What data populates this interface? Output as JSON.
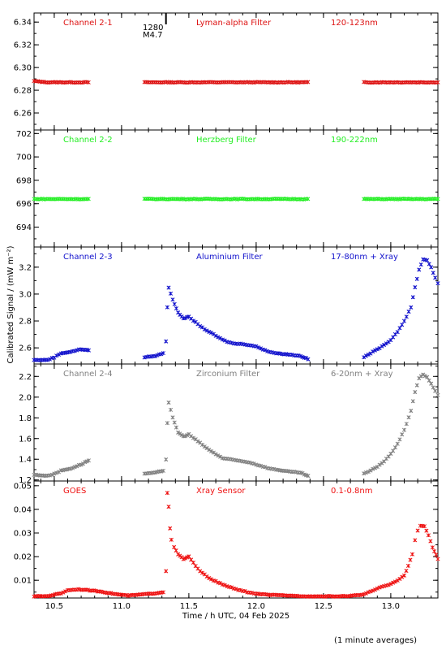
{
  "figure": {
    "xlabel": "Time / h UTC, 04 Feb 2025",
    "ylabel": "Calibrated Signal / (mW m⁻²)",
    "footnote": "(1 minute averages)",
    "flare_marker": {
      "x": 11.33,
      "time_label": "1280",
      "class_label": "M4.7"
    }
  },
  "chart_data": [
    {
      "type": "scatter",
      "channel": "Channel 2-1",
      "filter": "Lyman-alpha Filter",
      "band": "120-123nm",
      "color": "#dd1111",
      "xlim": [
        10.35,
        13.35
      ],
      "ylim": [
        6.245,
        6.348
      ],
      "yticks": [
        6.26,
        6.28,
        6.3,
        6.32,
        6.34
      ],
      "ytick_labels": [
        "6.26",
        "6.28",
        "6.30",
        "6.32",
        "6.34"
      ],
      "gaps": [
        [
          10.77,
          11.17
        ],
        [
          12.4,
          12.8
        ]
      ],
      "points": [
        [
          10.35,
          6.288
        ],
        [
          10.45,
          6.287
        ],
        [
          10.55,
          6.287
        ],
        [
          10.65,
          6.287
        ],
        [
          10.77,
          6.287
        ],
        [
          11.17,
          6.287
        ],
        [
          11.5,
          6.287
        ],
        [
          12.0,
          6.287
        ],
        [
          12.4,
          6.287
        ],
        [
          12.8,
          6.287
        ],
        [
          13.1,
          6.287
        ],
        [
          13.35,
          6.287
        ]
      ]
    },
    {
      "type": "scatter",
      "channel": "Channel 2-2",
      "filter": "Herzberg Filter",
      "band": "190-222nm",
      "color": "#22ee22",
      "xlim": [
        10.35,
        13.35
      ],
      "ylim": [
        692.3,
        702.3
      ],
      "yticks": [
        694,
        696,
        698,
        700,
        702
      ],
      "ytick_labels": [
        "694",
        "696",
        "698",
        "700",
        "702"
      ],
      "gaps": [
        [
          10.77,
          11.17
        ],
        [
          12.4,
          12.8
        ]
      ],
      "points": [
        [
          10.35,
          696.4
        ],
        [
          10.77,
          696.4
        ],
        [
          11.17,
          696.4
        ],
        [
          11.8,
          696.4
        ],
        [
          12.4,
          696.4
        ],
        [
          12.8,
          696.4
        ],
        [
          13.35,
          696.4
        ]
      ]
    },
    {
      "type": "scatter",
      "channel": "Channel 2-3",
      "filter": "Aluminium Filter",
      "band": "17-80nm + Xray",
      "color": "#1111cc",
      "xlim": [
        10.35,
        13.35
      ],
      "ylim": [
        2.48,
        3.35
      ],
      "yticks": [
        2.6,
        2.8,
        3.0,
        3.2
      ],
      "ytick_labels": [
        "2.6",
        "2.8",
        "3.0",
        "3.2"
      ],
      "gaps": [
        [
          10.77,
          11.17
        ],
        [
          12.4,
          12.8
        ]
      ],
      "points": [
        [
          10.35,
          2.51
        ],
        [
          10.45,
          2.51
        ],
        [
          10.5,
          2.53
        ],
        [
          10.55,
          2.56
        ],
        [
          10.62,
          2.57
        ],
        [
          10.7,
          2.59
        ],
        [
          10.77,
          2.58
        ],
        [
          11.17,
          2.53
        ],
        [
          11.25,
          2.54
        ],
        [
          11.31,
          2.56
        ],
        [
          11.33,
          2.65
        ],
        [
          11.34,
          2.9
        ],
        [
          11.35,
          3.05
        ],
        [
          11.38,
          2.96
        ],
        [
          11.42,
          2.86
        ],
        [
          11.46,
          2.82
        ],
        [
          11.5,
          2.83
        ],
        [
          11.55,
          2.79
        ],
        [
          11.6,
          2.75
        ],
        [
          11.65,
          2.72
        ],
        [
          11.7,
          2.69
        ],
        [
          11.75,
          2.66
        ],
        [
          11.8,
          2.64
        ],
        [
          11.85,
          2.63
        ],
        [
          11.9,
          2.63
        ],
        [
          11.95,
          2.62
        ],
        [
          12.0,
          2.61
        ],
        [
          12.05,
          2.59
        ],
        [
          12.1,
          2.57
        ],
        [
          12.15,
          2.56
        ],
        [
          12.25,
          2.55
        ],
        [
          12.33,
          2.54
        ],
        [
          12.4,
          2.51
        ],
        [
          12.8,
          2.53
        ],
        [
          12.85,
          2.56
        ],
        [
          12.9,
          2.59
        ],
        [
          12.95,
          2.62
        ],
        [
          13.0,
          2.66
        ],
        [
          13.05,
          2.72
        ],
        [
          13.1,
          2.8
        ],
        [
          13.15,
          2.9
        ],
        [
          13.18,
          3.05
        ],
        [
          13.21,
          3.18
        ],
        [
          13.24,
          3.26
        ],
        [
          13.27,
          3.25
        ],
        [
          13.3,
          3.2
        ],
        [
          13.33,
          3.12
        ],
        [
          13.35,
          3.08
        ]
      ]
    },
    {
      "type": "scatter",
      "channel": "Channel 2-4",
      "filter": "Zirconium Filter",
      "band": "6-20nm + Xray",
      "color": "#808080",
      "xlim": [
        10.35,
        13.35
      ],
      "ylim": [
        1.19,
        2.32
      ],
      "yticks": [
        1.2,
        1.4,
        1.6,
        1.8,
        2.0,
        2.2
      ],
      "ytick_labels": [
        "1.2",
        "1.4",
        "1.6",
        "1.8",
        "2.0",
        "2.2"
      ],
      "gaps": [
        [
          10.77,
          11.17
        ],
        [
          12.4,
          12.8
        ]
      ],
      "points": [
        [
          10.35,
          1.25
        ],
        [
          10.45,
          1.24
        ],
        [
          10.5,
          1.26
        ],
        [
          10.55,
          1.29
        ],
        [
          10.62,
          1.31
        ],
        [
          10.7,
          1.35
        ],
        [
          10.77,
          1.4
        ],
        [
          11.17,
          1.26
        ],
        [
          11.25,
          1.27
        ],
        [
          11.31,
          1.29
        ],
        [
          11.33,
          1.4
        ],
        [
          11.34,
          1.75
        ],
        [
          11.35,
          1.95
        ],
        [
          11.38,
          1.8
        ],
        [
          11.42,
          1.66
        ],
        [
          11.46,
          1.62
        ],
        [
          11.5,
          1.64
        ],
        [
          11.55,
          1.59
        ],
        [
          11.6,
          1.54
        ],
        [
          11.65,
          1.49
        ],
        [
          11.7,
          1.45
        ],
        [
          11.75,
          1.41
        ],
        [
          11.8,
          1.4
        ],
        [
          11.85,
          1.39
        ],
        [
          11.9,
          1.38
        ],
        [
          11.95,
          1.37
        ],
        [
          12.0,
          1.35
        ],
        [
          12.05,
          1.33
        ],
        [
          12.1,
          1.31
        ],
        [
          12.15,
          1.3
        ],
        [
          12.25,
          1.28
        ],
        [
          12.33,
          1.27
        ],
        [
          12.4,
          1.23
        ],
        [
          12.8,
          1.26
        ],
        [
          12.85,
          1.29
        ],
        [
          12.9,
          1.33
        ],
        [
          12.95,
          1.38
        ],
        [
          13.0,
          1.45
        ],
        [
          13.05,
          1.55
        ],
        [
          13.1,
          1.68
        ],
        [
          13.15,
          1.87
        ],
        [
          13.18,
          2.05
        ],
        [
          13.21,
          2.18
        ],
        [
          13.24,
          2.22
        ],
        [
          13.27,
          2.19
        ],
        [
          13.3,
          2.13
        ],
        [
          13.33,
          2.06
        ],
        [
          13.35,
          2.02
        ]
      ]
    },
    {
      "type": "scatter",
      "channel": "GOES",
      "filter": "Xray Sensor",
      "band": "0.1-0.8nm",
      "color": "#ee1111",
      "xlim": [
        10.35,
        13.35
      ],
      "ylim": [
        0.0025,
        0.052
      ],
      "yticks": [
        0.01,
        0.02,
        0.03,
        0.04,
        0.05
      ],
      "ytick_labels": [
        "0.01",
        "0.02",
        "0.03",
        "0.04",
        "0.05"
      ],
      "xticks": [
        10.5,
        11.0,
        11.5,
        12.0,
        12.5,
        13.0
      ],
      "xtick_labels": [
        "10.5",
        "11.0",
        "11.5",
        "12.0",
        "12.5",
        "13.0"
      ],
      "gaps": [],
      "points": [
        [
          10.35,
          0.0032
        ],
        [
          10.45,
          0.0033
        ],
        [
          10.55,
          0.0045
        ],
        [
          10.6,
          0.0058
        ],
        [
          10.68,
          0.0062
        ],
        [
          10.75,
          0.0058
        ],
        [
          10.85,
          0.0052
        ],
        [
          10.95,
          0.0042
        ],
        [
          11.05,
          0.0035
        ],
        [
          11.15,
          0.004
        ],
        [
          11.25,
          0.0045
        ],
        [
          11.31,
          0.005
        ],
        [
          11.33,
          0.014
        ],
        [
          11.34,
          0.047
        ],
        [
          11.35,
          0.041
        ],
        [
          11.36,
          0.032
        ],
        [
          11.37,
          0.027
        ],
        [
          11.39,
          0.024
        ],
        [
          11.42,
          0.021
        ],
        [
          11.46,
          0.019
        ],
        [
          11.5,
          0.02
        ],
        [
          11.55,
          0.016
        ],
        [
          11.6,
          0.013
        ],
        [
          11.65,
          0.011
        ],
        [
          11.7,
          0.0095
        ],
        [
          11.75,
          0.0082
        ],
        [
          11.8,
          0.0072
        ],
        [
          11.85,
          0.0062
        ],
        [
          11.9,
          0.0055
        ],
        [
          11.95,
          0.0048
        ],
        [
          12.0,
          0.0043
        ],
        [
          12.1,
          0.0038
        ],
        [
          12.2,
          0.0036
        ],
        [
          12.3,
          0.0034
        ],
        [
          12.4,
          0.0032
        ],
        [
          12.5,
          0.0032
        ],
        [
          12.6,
          0.0032
        ],
        [
          12.7,
          0.0034
        ],
        [
          12.8,
          0.004
        ],
        [
          12.85,
          0.0052
        ],
        [
          12.9,
          0.0065
        ],
        [
          12.95,
          0.0075
        ],
        [
          13.0,
          0.0085
        ],
        [
          13.05,
          0.01
        ],
        [
          13.1,
          0.012
        ],
        [
          13.13,
          0.016
        ],
        [
          13.16,
          0.021
        ],
        [
          13.18,
          0.027
        ],
        [
          13.2,
          0.031
        ],
        [
          13.22,
          0.033
        ],
        [
          13.25,
          0.033
        ],
        [
          13.28,
          0.029
        ],
        [
          13.31,
          0.024
        ],
        [
          13.35,
          0.019
        ]
      ]
    }
  ]
}
